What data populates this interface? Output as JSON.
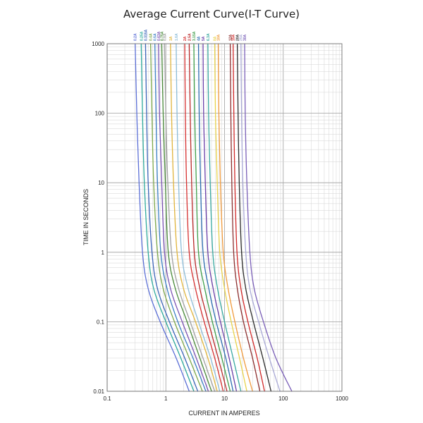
{
  "chart_data": {
    "type": "line",
    "title": "Average Current Curve(I-T Curve)",
    "xlabel": "CURRENT IN AMPERES",
    "ylabel": "TIME IN SECONDS",
    "x_scale": "log",
    "y_scale": "log",
    "xlim": [
      0.1,
      1000
    ],
    "ylim": [
      0.01,
      1000
    ],
    "x_ticks": [
      "0.1",
      "1",
      "10",
      "100",
      "1000"
    ],
    "y_ticks": [
      "1000",
      "100",
      "10",
      "1",
      "0.1",
      "0.01"
    ],
    "grid": true,
    "legend": "rating labels above the top axis",
    "series": [
      {
        "name": "0.2A",
        "color": "#5b6fd6",
        "points": [
          [
            0.3,
            1000
          ],
          [
            0.32,
            100
          ],
          [
            0.35,
            10
          ],
          [
            0.4,
            1
          ],
          [
            0.5,
            0.3
          ],
          [
            0.8,
            0.1
          ],
          [
            1.5,
            0.03
          ],
          [
            2.5,
            0.01
          ]
        ]
      },
      {
        "name": "0.25A",
        "color": "#2eaa9c",
        "points": [
          [
            0.38,
            1000
          ],
          [
            0.4,
            100
          ],
          [
            0.43,
            10
          ],
          [
            0.5,
            1
          ],
          [
            0.62,
            0.3
          ],
          [
            1.0,
            0.1
          ],
          [
            1.8,
            0.03
          ],
          [
            3.0,
            0.01
          ]
        ]
      },
      {
        "name": "0.315A",
        "color": "#3b64b8",
        "points": [
          [
            0.45,
            1000
          ],
          [
            0.47,
            100
          ],
          [
            0.5,
            10
          ],
          [
            0.58,
            1
          ],
          [
            0.72,
            0.3
          ],
          [
            1.15,
            0.1
          ],
          [
            2.1,
            0.03
          ],
          [
            3.5,
            0.01
          ]
        ]
      },
      {
        "name": "0.4A",
        "color": "#7da84a",
        "points": [
          [
            0.55,
            1000
          ],
          [
            0.58,
            100
          ],
          [
            0.62,
            10
          ],
          [
            0.72,
            1
          ],
          [
            0.9,
            0.3
          ],
          [
            1.4,
            0.1
          ],
          [
            2.5,
            0.03
          ],
          [
            4.2,
            0.01
          ]
        ]
      },
      {
        "name": "0.5A",
        "color": "#3a7fc4",
        "points": [
          [
            0.65,
            1000
          ],
          [
            0.68,
            100
          ],
          [
            0.72,
            10
          ],
          [
            0.82,
            1
          ],
          [
            1.05,
            0.3
          ],
          [
            1.6,
            0.1
          ],
          [
            2.9,
            0.03
          ],
          [
            4.8,
            0.01
          ]
        ]
      },
      {
        "name": "0.63A",
        "color": "#7a52b3",
        "points": [
          [
            0.75,
            1000
          ],
          [
            0.78,
            100
          ],
          [
            0.85,
            10
          ],
          [
            0.95,
            1
          ],
          [
            1.2,
            0.3
          ],
          [
            1.9,
            0.1
          ],
          [
            3.3,
            0.03
          ],
          [
            5.3,
            0.01
          ]
        ]
      },
      {
        "name": "0.75A",
        "color": "#4a8a3a",
        "points": [
          [
            0.85,
            1000
          ],
          [
            0.9,
            100
          ],
          [
            0.98,
            10
          ],
          [
            1.1,
            1
          ],
          [
            1.45,
            0.3
          ],
          [
            2.3,
            0.1
          ],
          [
            3.8,
            0.03
          ],
          [
            6.0,
            0.01
          ]
        ]
      },
      {
        "name": "0.8A",
        "color": "#a0a0a0",
        "points": [
          [
            0.95,
            1000
          ],
          [
            1.0,
            100
          ],
          [
            1.08,
            10
          ],
          [
            1.25,
            1
          ],
          [
            1.65,
            0.3
          ],
          [
            2.6,
            0.1
          ],
          [
            4.3,
            0.03
          ],
          [
            6.8,
            0.01
          ]
        ]
      },
      {
        "name": "1A",
        "color": "#e0b43c",
        "points": [
          [
            1.2,
            1000
          ],
          [
            1.25,
            100
          ],
          [
            1.35,
            10
          ],
          [
            1.55,
            1
          ],
          [
            2.0,
            0.3
          ],
          [
            3.2,
            0.1
          ],
          [
            5.2,
            0.03
          ],
          [
            7.5,
            0.01
          ]
        ]
      },
      {
        "name": "1.6A",
        "color": "#8cbcd8",
        "points": [
          [
            1.5,
            1000
          ],
          [
            1.55,
            100
          ],
          [
            1.65,
            10
          ],
          [
            1.85,
            1
          ],
          [
            2.4,
            0.3
          ],
          [
            3.6,
            0.1
          ],
          [
            5.8,
            0.03
          ],
          [
            8.3,
            0.01
          ]
        ]
      },
      {
        "name": "2A",
        "color": "#d63030",
        "points": [
          [
            2.1,
            1000
          ],
          [
            2.15,
            100
          ],
          [
            2.25,
            10
          ],
          [
            2.5,
            1
          ],
          [
            3.2,
            0.3
          ],
          [
            4.5,
            0.1
          ],
          [
            6.8,
            0.03
          ],
          [
            9.5,
            0.01
          ]
        ]
      },
      {
        "name": "2.5A",
        "color": "#b82828",
        "points": [
          [
            2.5,
            1000
          ],
          [
            2.6,
            100
          ],
          [
            2.75,
            10
          ],
          [
            3.05,
            1
          ],
          [
            3.8,
            0.3
          ],
          [
            5.3,
            0.1
          ],
          [
            7.8,
            0.03
          ],
          [
            11.0,
            0.01
          ]
        ]
      },
      {
        "name": "3.15A",
        "color": "#3f9e4a",
        "points": [
          [
            3.0,
            1000
          ],
          [
            3.1,
            100
          ],
          [
            3.3,
            10
          ],
          [
            3.6,
            1
          ],
          [
            4.6,
            0.3
          ],
          [
            6.2,
            0.1
          ],
          [
            9.0,
            0.03
          ],
          [
            12.5,
            0.01
          ]
        ]
      },
      {
        "name": "4A",
        "color": "#2b6cb0",
        "points": [
          [
            3.6,
            1000
          ],
          [
            3.7,
            100
          ],
          [
            3.9,
            10
          ],
          [
            4.3,
            1
          ],
          [
            5.4,
            0.3
          ],
          [
            7.2,
            0.1
          ],
          [
            10.5,
            0.03
          ],
          [
            14.0,
            0.01
          ]
        ]
      },
      {
        "name": "5A",
        "color": "#6a3fa8",
        "points": [
          [
            4.3,
            1000
          ],
          [
            4.4,
            100
          ],
          [
            4.7,
            10
          ],
          [
            5.2,
            1
          ],
          [
            6.4,
            0.3
          ],
          [
            8.5,
            0.1
          ],
          [
            12.0,
            0.03
          ],
          [
            16.0,
            0.01
          ]
        ]
      },
      {
        "name": "6.3A",
        "color": "#37a8a0",
        "points": [
          [
            5.2,
            1000
          ],
          [
            5.35,
            100
          ],
          [
            5.7,
            10
          ],
          [
            6.3,
            1
          ],
          [
            7.6,
            0.3
          ],
          [
            10.0,
            0.1
          ],
          [
            14.0,
            0.03
          ],
          [
            19.0,
            0.01
          ]
        ]
      },
      {
        "name": "8A",
        "color": "#e8d24a",
        "points": [
          [
            6.8,
            1000
          ],
          [
            7.0,
            100
          ],
          [
            7.5,
            10
          ],
          [
            8.3,
            1
          ],
          [
            10.0,
            0.3
          ],
          [
            13.0,
            0.1
          ],
          [
            18.0,
            0.03
          ],
          [
            24.0,
            0.01
          ]
        ]
      },
      {
        "name": "10A",
        "color": "#f09a3c",
        "points": [
          [
            7.8,
            1000
          ],
          [
            8.0,
            100
          ],
          [
            8.5,
            10
          ],
          [
            9.5,
            1
          ],
          [
            11.5,
            0.3
          ],
          [
            15.0,
            0.1
          ],
          [
            21.0,
            0.03
          ],
          [
            30.0,
            0.01
          ]
        ]
      },
      {
        "name": "12A",
        "color": "#8c2e2e",
        "points": [
          [
            12.5,
            1000
          ],
          [
            12.8,
            100
          ],
          [
            13.3,
            10
          ],
          [
            14.3,
            1
          ],
          [
            16.5,
            0.3
          ],
          [
            21.0,
            0.1
          ],
          [
            30.0,
            0.03
          ],
          [
            40.0,
            0.01
          ]
        ]
      },
      {
        "name": "15A",
        "color": "#d02828",
        "points": [
          [
            14.0,
            1000
          ],
          [
            14.4,
            100
          ],
          [
            15.0,
            10
          ],
          [
            16.3,
            1
          ],
          [
            19.0,
            0.3
          ],
          [
            25.0,
            0.1
          ],
          [
            36.0,
            0.03
          ],
          [
            48.0,
            0.01
          ]
        ]
      },
      {
        "name": "20A",
        "color": "#2a2a2a",
        "points": [
          [
            16.5,
            1000
          ],
          [
            17.0,
            100
          ],
          [
            17.8,
            10
          ],
          [
            19.5,
            1
          ],
          [
            23.0,
            0.3
          ],
          [
            31.0,
            0.1
          ],
          [
            45.0,
            0.03
          ],
          [
            62.0,
            0.01
          ]
        ]
      },
      {
        "name": "25A",
        "color": "#a9a9d6",
        "points": [
          [
            19.0,
            1000
          ],
          [
            19.5,
            100
          ],
          [
            20.5,
            10
          ],
          [
            23.0,
            1
          ],
          [
            27.0,
            0.3
          ],
          [
            38.0,
            0.1
          ],
          [
            58.0,
            0.03
          ],
          [
            88.0,
            0.01
          ]
        ]
      },
      {
        "name": "30A",
        "color": "#7a5fb8",
        "points": [
          [
            22.0,
            1000
          ],
          [
            22.5,
            100
          ],
          [
            24.0,
            10
          ],
          [
            27.0,
            1
          ],
          [
            32.0,
            0.3
          ],
          [
            46.0,
            0.1
          ],
          [
            75.0,
            0.03
          ],
          [
            140.0,
            0.01
          ]
        ]
      }
    ]
  }
}
